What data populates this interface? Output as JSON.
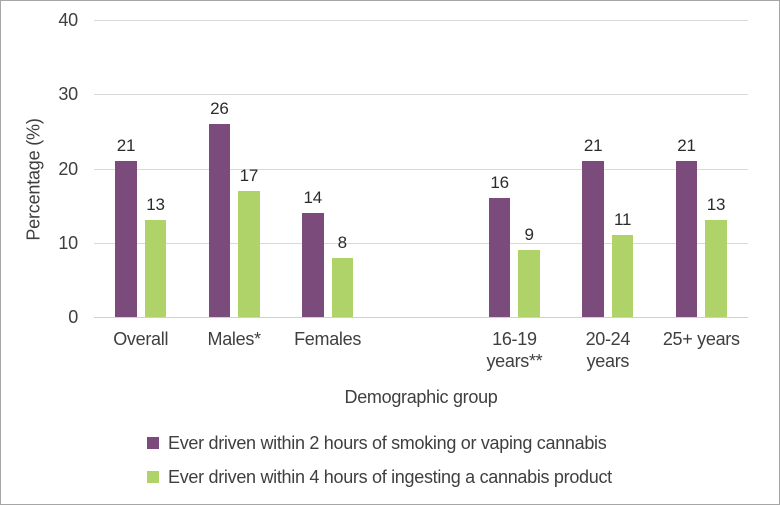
{
  "chart_data": {
    "type": "bar",
    "title": "",
    "xlabel": "Demographic group",
    "ylabel": "Percentage (%)",
    "ylim": [
      0,
      40
    ],
    "yticks": [
      0,
      10,
      20,
      30,
      40
    ],
    "grid": true,
    "legend_position": "bottom",
    "categories": [
      "Overall",
      "Males*",
      "Females",
      "16-19 years**",
      "20-24 years",
      "25+ years"
    ],
    "category_label_lines": [
      [
        "Overall"
      ],
      [
        "Males*"
      ],
      [
        "Females"
      ],
      [
        "16-19",
        "years**"
      ],
      [
        "20-24",
        "years"
      ],
      [
        "25+ years"
      ]
    ],
    "slot_indices": [
      0,
      1,
      2,
      4,
      5,
      6
    ],
    "total_slots": 7,
    "series": [
      {
        "name": "Ever driven within 2 hours of smoking or vaping cannabis",
        "color": "#7b4b7c",
        "values": [
          21,
          26,
          14,
          16,
          21,
          21
        ]
      },
      {
        "name": "Ever driven within 4 hours of ingesting a cannabis product",
        "color": "#afd269",
        "values": [
          13,
          17,
          8,
          9,
          11,
          13
        ]
      }
    ],
    "colors": {
      "gridline": "#d9d9d9",
      "axis_line": "#d0d0d0",
      "tick_text": "#3f3f3f",
      "data_label_text": "#2b2b2b"
    }
  }
}
